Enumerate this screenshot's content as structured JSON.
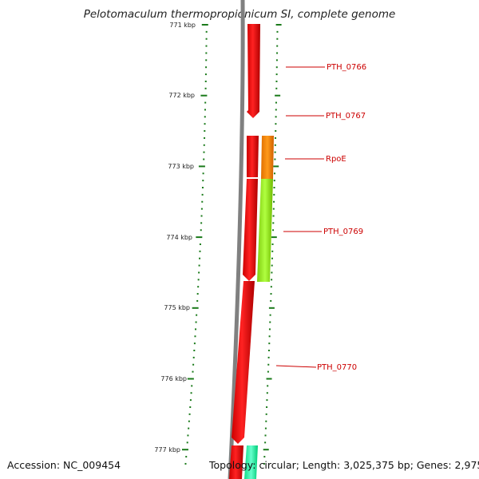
{
  "title": "Pelotomaculum thermopropionicum SI, complete genome",
  "footer": {
    "accession": "Accession: NC_009454",
    "topology": "Topology: circular; Length: 3,025,375 bp; Genes: 2,975"
  },
  "ruler": {
    "unit": "kbp",
    "ticks": [
      "771 kbp",
      "772 kbp",
      "773 kbp",
      "774 kbp",
      "775 kbp",
      "776 kbp",
      "777 kbp"
    ]
  },
  "genes": [
    {
      "label": "PTH_0766",
      "color": "#ff0000"
    },
    {
      "label": "PTH_0767",
      "color": "#ff0000"
    },
    {
      "label": "RpoE",
      "color": "#ff8800"
    },
    {
      "label": "PTH_0769",
      "color": "#99ee22"
    },
    {
      "label": "PTH_0770",
      "color": "#ff0000"
    }
  ],
  "colors": {
    "backbone": "#808080",
    "ticks": "#006400",
    "label": "#cc0000",
    "next_gene": "#33ffaa"
  }
}
